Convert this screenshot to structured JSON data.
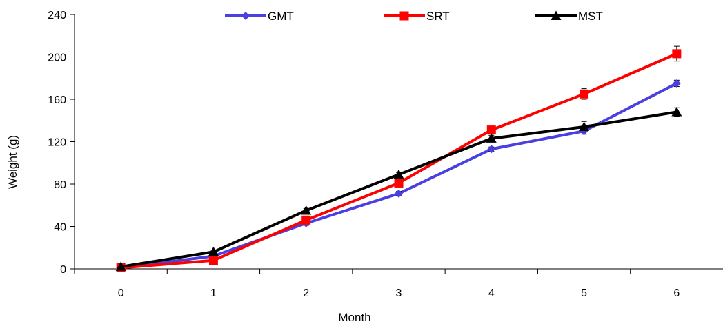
{
  "chart_data": {
    "type": "line",
    "title": "",
    "xlabel": "Month",
    "ylabel": "Weight (g)",
    "x": [
      0,
      1,
      2,
      3,
      4,
      5,
      6
    ],
    "ylim": [
      0,
      240
    ],
    "yticks": [
      0,
      40,
      80,
      120,
      160,
      200,
      240
    ],
    "grid": false,
    "legend_position": "top",
    "series": [
      {
        "name": "GMT",
        "color": "#4A3FE0",
        "marker": "diamond",
        "values": [
          1,
          12,
          43,
          71,
          113,
          130,
          175
        ],
        "errors": [
          0,
          1,
          2,
          2,
          2,
          3,
          3
        ]
      },
      {
        "name": "SRT",
        "color": "#FF0000",
        "marker": "square",
        "values": [
          1,
          8,
          46,
          81,
          131,
          165,
          203
        ],
        "errors": [
          0,
          1,
          2,
          2,
          3,
          5,
          7
        ]
      },
      {
        "name": "MST",
        "color": "#000000",
        "marker": "triangle",
        "values": [
          2,
          16,
          55,
          89,
          123,
          134,
          148
        ],
        "errors": [
          0,
          1,
          2,
          2,
          3,
          5,
          4
        ]
      }
    ]
  }
}
